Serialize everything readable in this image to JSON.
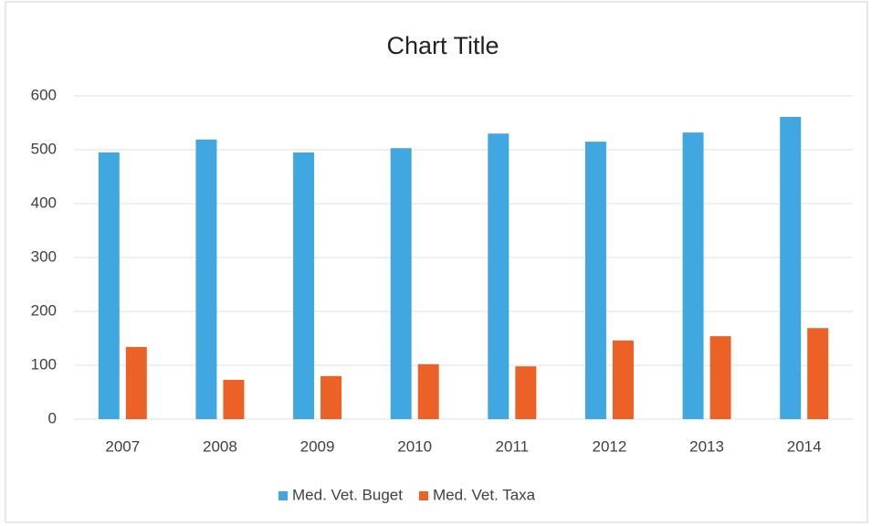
{
  "chart_data": {
    "type": "bar",
    "title": "Chart Title",
    "categories": [
      "2007",
      "2008",
      "2009",
      "2010",
      "2011",
      "2012",
      "2013",
      "2014"
    ],
    "series": [
      {
        "name": "Med. Vet. Buget",
        "color": "#41a7e0",
        "values": [
          495,
          519,
          495,
          503,
          530,
          515,
          532,
          561
        ]
      },
      {
        "name": "Med. Vet. Taxa",
        "color": "#ec6125",
        "values": [
          134,
          73,
          80,
          102,
          98,
          146,
          154,
          169
        ]
      }
    ],
    "ylim": [
      0,
      600
    ],
    "yticks": [
      0,
      100,
      200,
      300,
      400,
      500,
      600
    ],
    "grid": true,
    "legend": "bottom"
  }
}
